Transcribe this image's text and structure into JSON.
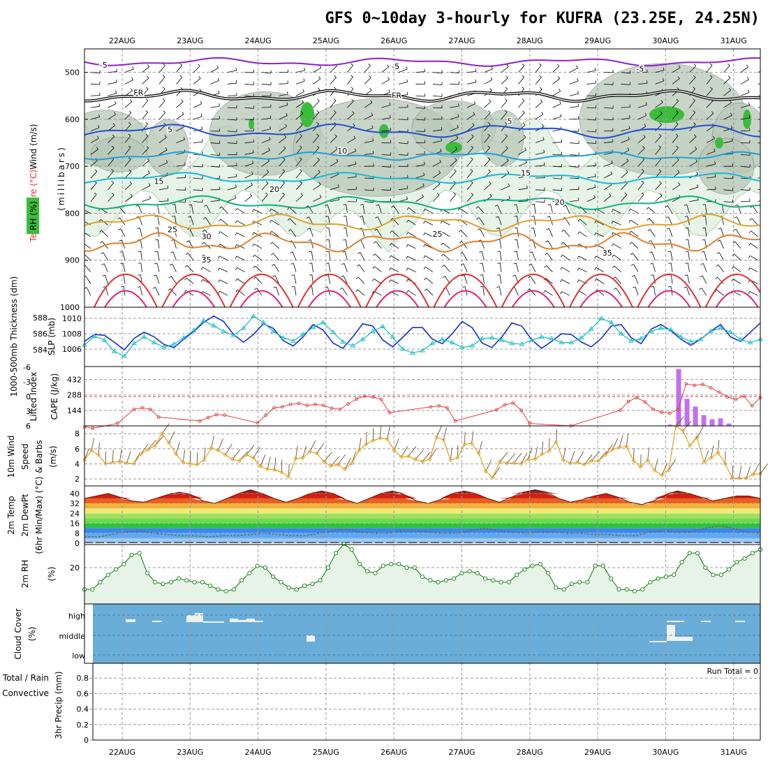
{
  "title": "GFS 0~10day 3-hourly for KUFRA (23.25E, 24.25N)",
  "dates": [
    "22AUG",
    "23AUG",
    "24AUG",
    "25AUG",
    "26AUG",
    "27AUG",
    "28AUG",
    "29AUG",
    "30AUG",
    "31AUG"
  ],
  "colors": {
    "rh_green": "#3cbc3c",
    "rh_light": "#e6f3e6",
    "temp_purple": "#8b1fd0",
    "temp_blue": "#1f4fd0",
    "temp_cyan": "#20a0d8",
    "temp_green": "#10b080",
    "temp_orange": "#e0a030",
    "temp_red": "#e03030",
    "slp_blue": "#1030d0",
    "thk_cyan": "#20c0c0",
    "li_red": "#e04040",
    "cape_purple": "#c070f0",
    "wind_orange": "#e0a020",
    "cloud_blue": "#6aadd8",
    "rh2m_green": "#2a8a2a"
  },
  "chart_data": [
    {
      "panel": "upper-air",
      "type": "contour",
      "ylabel_lines": [
        "Temperature (°C)",
        "Wind (m/s)"
      ],
      "ylabel_mb": "(millibars)",
      "rh_label": "RH (%)",
      "ylim": [
        1000,
        450
      ],
      "yticks": [
        500,
        600,
        700,
        800,
        900,
        1000
      ],
      "isotherm_labels": [
        {
          "text": "-5",
          "x": 0.1,
          "p": 490,
          "color": "temp_purple"
        },
        {
          "text": "-5",
          "x": 4.4,
          "p": 493,
          "color": "temp_purple"
        },
        {
          "text": "-5",
          "x": 8.0,
          "p": 498,
          "color": "temp_purple"
        },
        {
          "text": "FR",
          "x": 0.6,
          "p": 549,
          "color": "black"
        },
        {
          "text": "FR",
          "x": 4.4,
          "p": 555,
          "color": "black"
        },
        {
          "text": "5",
          "x": 1.1,
          "p": 628,
          "color": "temp_blue"
        },
        {
          "text": "5",
          "x": 6.1,
          "p": 610,
          "color": "temp_blue"
        },
        {
          "text": "10",
          "x": 3.6,
          "p": 673,
          "color": "temp_cyan"
        },
        {
          "text": "15",
          "x": 0.9,
          "p": 738,
          "color": "temp_cyan"
        },
        {
          "text": "15",
          "x": 6.3,
          "p": 720,
          "color": "temp_cyan"
        },
        {
          "text": "20",
          "x": 2.6,
          "p": 755,
          "color": "temp_green"
        },
        {
          "text": "20",
          "x": 6.8,
          "p": 782,
          "color": "temp_green"
        },
        {
          "text": "25",
          "x": 1.1,
          "p": 840,
          "color": "temp_orange"
        },
        {
          "text": "25",
          "x": 5.0,
          "p": 850,
          "color": "temp_orange"
        },
        {
          "text": "30",
          "x": 1.6,
          "p": 855,
          "color": "temp_orange"
        },
        {
          "text": "35",
          "x": 1.6,
          "p": 905,
          "color": "temp_red"
        },
        {
          "text": "35",
          "x": 7.5,
          "p": 890,
          "color": "temp_red"
        }
      ]
    },
    {
      "panel": "slp-thickness",
      "type": "line",
      "ylabel_left": "1000-500mb Thickness (dm)",
      "ylabel_right": "SLP (mb)",
      "thickness_ticks": [
        584,
        586,
        588
      ],
      "slp_ticks": [
        1006,
        1008,
        1010
      ],
      "series": [
        {
          "name": "SLP (mb)",
          "values": [
            1007.0,
            1007.9,
            1007.8,
            1006.9,
            1005.9,
            1007.4,
            1008.2,
            1007.6,
            1006.6,
            1006.2,
            1007.3,
            1008.3,
            1009.5,
            1010.3,
            1009.6,
            1007.9,
            1006.9,
            1007.9,
            1009.3,
            1008.7,
            1007.1,
            1006.4,
            1007.6,
            1009.2,
            1008.5,
            1006.8,
            1006.1,
            1007.6,
            1009.3,
            1009.0,
            1007.2,
            1006.3,
            1007.5,
            1008.8,
            1008.8,
            1007.3,
            1006.7,
            1008.0,
            1009.6,
            1008.8,
            1006.8,
            1006.2,
            1007.6,
            1009.4,
            1009.0,
            1007.2,
            1006.1,
            1007.0,
            1008.0,
            1007.9,
            1006.9,
            1006.3,
            1007.4,
            1009.0,
            1009.2,
            1007.5,
            1006.7,
            1008.6,
            1009.2,
            1008.4,
            1007.3,
            1006.5,
            1007.3,
            1008.3,
            1009.2,
            1007.6,
            1007.0,
            1008.2,
            1009.4
          ]
        },
        {
          "name": "Thickness (dm)",
          "values": [
            584.6,
            585.7,
            585.2,
            583.8,
            583.2,
            584.8,
            585.6,
            584.9,
            584.3,
            584.7,
            585.5,
            586.4,
            587.6,
            587.0,
            586.3,
            585.8,
            586.7,
            588.2,
            587.4,
            586.3,
            585.5,
            585.1,
            585.9,
            586.8,
            587.4,
            586.2,
            585.0,
            584.5,
            585.3,
            586.3,
            586.9,
            585.6,
            584.1,
            583.6,
            583.9,
            584.8,
            585.3,
            584.9,
            584.3,
            584.5,
            585.4,
            585.5,
            585.2,
            584.8,
            584.7,
            585.2,
            585.6,
            585.4,
            584.9,
            584.9,
            585.5,
            586.6,
            587.9,
            587.4,
            586.0,
            585.1,
            585.4,
            586.3,
            586.7,
            586.5,
            585.6,
            585.0,
            585.3,
            586.3,
            586.7,
            586.2,
            585.3,
            584.9,
            585.3
          ]
        }
      ]
    },
    {
      "panel": "li-cape",
      "type": "line+bar",
      "ylabel_left": "Lifted Index",
      "ylabel_right": "CAPE (J/kg)",
      "li_ticks": [
        -6,
        -3,
        0,
        3,
        6
      ],
      "li_tick_labels": [
        "-6",
        "-3",
        "0",
        "3",
        "6"
      ],
      "cape_ticks": [
        144,
        288,
        432
      ],
      "lifted_index": [
        6.2,
        6.5,
        null,
        null,
        5.5,
        null,
        2.6,
        2.3,
        2.6,
        4.2,
        null,
        null,
        null,
        null,
        5.0,
        4.3,
        3.7,
        3.8,
        null,
        null,
        null,
        5.4,
        3.8,
        2.3,
        2.1,
        1.6,
        1.4,
        1.8,
        1.6,
        1.8,
        2.4,
        2.6,
        1.5,
        0.5,
        -0.1,
        0.1,
        0.6,
        3.3,
        null,
        null,
        null,
        null,
        2.1,
        1.9,
        2.3,
        5.0,
        null,
        null,
        null,
        null,
        2.7,
        1.7,
        1.3,
        2.8,
        5.5,
        null,
        null,
        null,
        null,
        6.0,
        null,
        null,
        null,
        null,
        null,
        2.8,
        1.0,
        0.2,
        1.1,
        2.6,
        3.2,
        3.4,
        2.7,
        -2.6,
        -2.3,
        -2.5,
        -1.8,
        -0.9,
        0.1,
        0.6,
        -0.1,
        1.9,
        0.2
      ],
      "cape_bars": [
        {
          "i": 70,
          "v": 12
        },
        {
          "i": 71,
          "v": 530
        },
        {
          "i": 72,
          "v": 252
        },
        {
          "i": 73,
          "v": 180
        },
        {
          "i": 74,
          "v": 100
        },
        {
          "i": 75,
          "v": 62
        },
        {
          "i": 76,
          "v": 70
        },
        {
          "i": 77,
          "v": 22
        }
      ]
    },
    {
      "panel": "10m-wind",
      "type": "line",
      "ylabel_lines": [
        "10m Wind",
        "Speed",
        "& Barbs",
        "(m/s)"
      ],
      "yticks": [
        2,
        4,
        6,
        8
      ],
      "series": [
        {
          "name": "10m Wind Speed (m/s)",
          "values": [
            4.5,
            5.8,
            5.2,
            4.0,
            4.2,
            4.3,
            4.1,
            4.0,
            5.3,
            5.9,
            6.4,
            8.0,
            6.8,
            5.3,
            4.2,
            4.0,
            3.9,
            4.5,
            6.1,
            5.8,
            5.2,
            4.6,
            4.4,
            5.2,
            4.8,
            3.7,
            3.3,
            3.2,
            2.9,
            2.3,
            4.7,
            4.8,
            5.6,
            5.4,
            4.3,
            3.7,
            3.9,
            3.3,
            4.1,
            5.8,
            6.6,
            7.1,
            7.4,
            7.3,
            5.8,
            4.9,
            5.0,
            4.6,
            4.3,
            4.6,
            7.5,
            7.2,
            4.5,
            4.8,
            6.6,
            6.7,
            5.4,
            3.0,
            2.2,
            4.3,
            4.1,
            4.1,
            4.0,
            4.6,
            4.6,
            5.3,
            5.7,
            6.9,
            4.5,
            4.1,
            4.2,
            3.9,
            4.4,
            4.4,
            5.2,
            5.9,
            6.2,
            6.3,
            4.4,
            3.6,
            4.5,
            3.1,
            2.5,
            3.2,
            9.0,
            8.4,
            6.4,
            7.5,
            4.2,
            4.8,
            5.5,
            4.0,
            2.1,
            2.1,
            2.1,
            2.6,
            2.7
          ]
        }
      ]
    },
    {
      "panel": "2m-temp",
      "type": "area",
      "ylabel_lines": [
        "2m Temp",
        "2m DewPt",
        "(6hr Min/Max) (°C)"
      ],
      "yticks": [
        0,
        8,
        16,
        24,
        32,
        40
      ],
      "series": [
        {
          "name": "2m Temp (°C)",
          "values": [
            36,
            38,
            40,
            37,
            34,
            33,
            36,
            39,
            41,
            39,
            34,
            32,
            36,
            40,
            43,
            40,
            36,
            33,
            36,
            40,
            42,
            40,
            35,
            32,
            36,
            40,
            42,
            39,
            34,
            32,
            35,
            40,
            42,
            40,
            36,
            33,
            37,
            41,
            43,
            41,
            36,
            33,
            35,
            38,
            40,
            37,
            33,
            31,
            34,
            39,
            42,
            40,
            37,
            34,
            36,
            38,
            38,
            36
          ]
        },
        {
          "name": "2m DewPt (°C)",
          "values": [
            5,
            5,
            7,
            9,
            10,
            8,
            7,
            6,
            6,
            5,
            6,
            6,
            7,
            8,
            7,
            6,
            6,
            8,
            10,
            11,
            9,
            8,
            8,
            10,
            10,
            9,
            8,
            8,
            10,
            12,
            10,
            9,
            8,
            9,
            9,
            8,
            8,
            7,
            7,
            6,
            6,
            9,
            10,
            9,
            9,
            12,
            14,
            12,
            9,
            8
          ]
        }
      ]
    },
    {
      "panel": "2m-rh",
      "type": "line",
      "ylabel_lines": [
        "2m RH",
        "(%)"
      ],
      "yticks": [
        20
      ],
      "ytick_labels": [
        "20"
      ],
      "series": [
        {
          "name": "2m RH (%)",
          "values": [
            8,
            8,
            12,
            16,
            19,
            22,
            27,
            28,
            17,
            12,
            11,
            12,
            14,
            13,
            12,
            12,
            10,
            8,
            7,
            8,
            13,
            17,
            21,
            20,
            15,
            12,
            9,
            8,
            10,
            11,
            13,
            20,
            28,
            33,
            30,
            22,
            18,
            17,
            21,
            22,
            22,
            20,
            20,
            15,
            13,
            12,
            13,
            14,
            17,
            18,
            17,
            14,
            13,
            12,
            12,
            16,
            19,
            21,
            22,
            17,
            9,
            8,
            11,
            12,
            12,
            21,
            21,
            14,
            8,
            8,
            7,
            8,
            12,
            14,
            15,
            16,
            23,
            28,
            28,
            20,
            16,
            16,
            19,
            23,
            25,
            28,
            30
          ]
        }
      ]
    },
    {
      "panel": "cloud-cover",
      "type": "bar",
      "ylabel_lines": [
        "Cloud Cover",
        "(%)"
      ],
      "levels": [
        "high",
        "middle",
        "low"
      ]
    },
    {
      "panel": "precip",
      "type": "bar",
      "ylabel_lines": [
        "Total / Rain",
        "Convective",
        "3hr Precip (mm)"
      ],
      "yticks": [
        0,
        0.2,
        0.4,
        0.6,
        0.8
      ],
      "ytick_labels": [
        "0",
        "0.2",
        "0.4",
        "0.6",
        "0.8"
      ],
      "run_total_label": "Run Total = 0"
    }
  ]
}
